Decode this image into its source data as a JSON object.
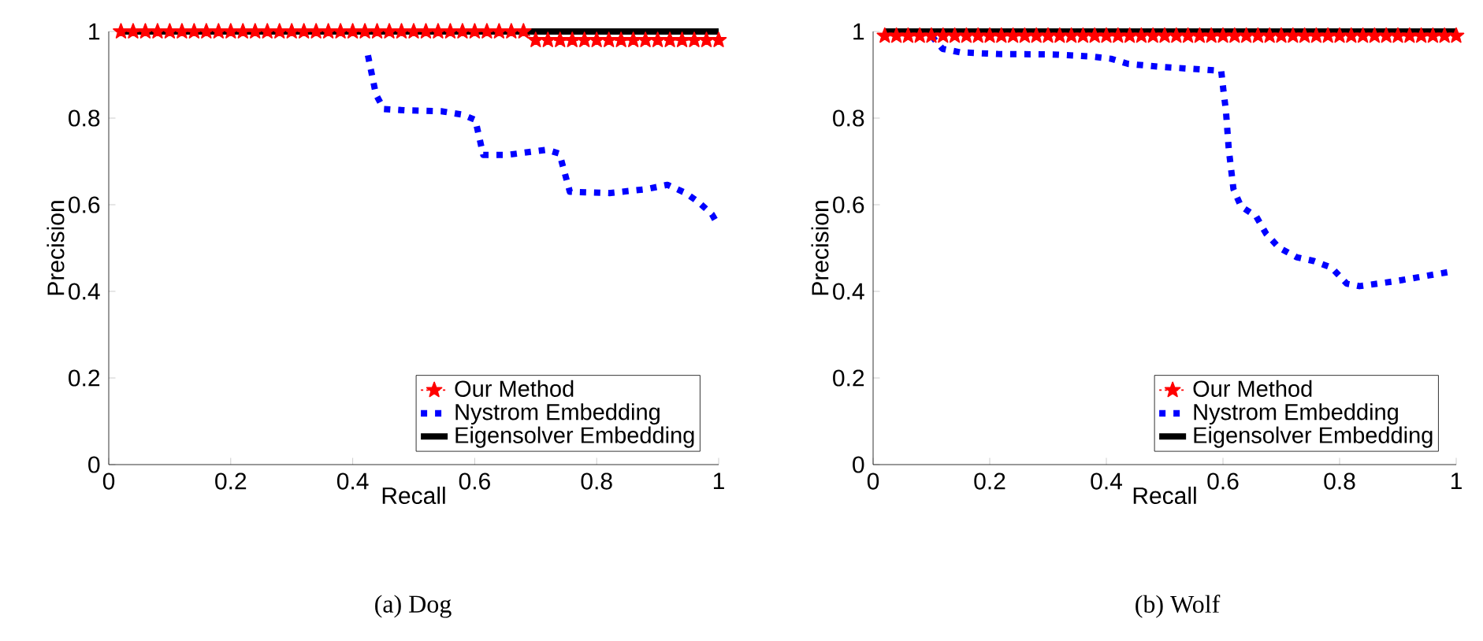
{
  "chart_data": [
    {
      "type": "line",
      "title": "(a) Dog",
      "xlabel": "Recall",
      "ylabel": "Precision",
      "xlim": [
        0,
        1
      ],
      "ylim": [
        0,
        1
      ],
      "xticks": [
        0,
        0.2,
        0.4,
        0.6,
        0.8,
        1
      ],
      "yticks": [
        0,
        0.2,
        0.4,
        0.6,
        0.8,
        1
      ],
      "grid": false,
      "legend": "bottom right",
      "series": [
        {
          "name": "Our Method",
          "color": "#ff0000",
          "marker": "star",
          "line_style": "dotted",
          "x": [
            0.02,
            0.04,
            0.06,
            0.08,
            0.1,
            0.12,
            0.14,
            0.16,
            0.18,
            0.2,
            0.22,
            0.24,
            0.26,
            0.28,
            0.3,
            0.32,
            0.34,
            0.36,
            0.38,
            0.4,
            0.42,
            0.44,
            0.46,
            0.48,
            0.5,
            0.52,
            0.54,
            0.56,
            0.58,
            0.6,
            0.62,
            0.64,
            0.66,
            0.68,
            0.7,
            0.72,
            0.74,
            0.76,
            0.78,
            0.8,
            0.82,
            0.84,
            0.86,
            0.88,
            0.9,
            0.92,
            0.94,
            0.96,
            0.98,
            1
          ],
          "values": [
            1,
            1,
            1,
            1,
            1,
            1,
            1,
            1,
            1,
            1,
            1,
            1,
            1,
            1,
            1,
            1,
            1,
            1,
            1,
            1,
            1,
            1,
            1,
            1,
            1,
            1,
            1,
            1,
            1,
            1,
            1,
            1,
            1,
            1,
            0.98,
            0.98,
            0.98,
            0.98,
            0.98,
            0.98,
            0.98,
            0.98,
            0.98,
            0.98,
            0.98,
            0.98,
            0.98,
            0.98,
            0.98,
            0.98
          ]
        },
        {
          "name": "Nystrom Embedding",
          "color": "#0000ff",
          "marker": "none",
          "line_style": "dotted",
          "x": [
            0.425,
            0.438,
            0.451,
            0.485,
            0.545,
            0.58,
            0.601,
            0.614,
            0.653,
            0.718,
            0.739,
            0.756,
            0.821,
            0.881,
            0.916,
            0.946,
            0.967,
            0.989,
            0.997
          ],
          "values": [
            0.945,
            0.855,
            0.821,
            0.818,
            0.816,
            0.808,
            0.796,
            0.715,
            0.715,
            0.727,
            0.718,
            0.63,
            0.627,
            0.636,
            0.646,
            0.627,
            0.606,
            0.578,
            0.558
          ]
        },
        {
          "name": "Eigensolver Embedding",
          "color": "#000000",
          "marker": "none",
          "line_style": "solid",
          "x": [
            0.02,
            1
          ],
          "values": [
            1,
            1
          ]
        }
      ]
    },
    {
      "type": "line",
      "title": "(b) Wolf",
      "xlabel": "Recall",
      "ylabel": "Precision",
      "xlim": [
        0,
        1
      ],
      "ylim": [
        0,
        1
      ],
      "xticks": [
        0,
        0.2,
        0.4,
        0.6,
        0.8,
        1
      ],
      "yticks": [
        0,
        0.2,
        0.4,
        0.6,
        0.8,
        1
      ],
      "grid": false,
      "legend": "bottom right",
      "series": [
        {
          "name": "Our Method",
          "color": "#ff0000",
          "marker": "star",
          "line_style": "dotted",
          "x": [
            0.02,
            0.04,
            0.06,
            0.08,
            0.1,
            0.12,
            0.14,
            0.16,
            0.18,
            0.2,
            0.22,
            0.24,
            0.26,
            0.28,
            0.3,
            0.32,
            0.34,
            0.36,
            0.38,
            0.4,
            0.42,
            0.44,
            0.46,
            0.48,
            0.5,
            0.52,
            0.54,
            0.56,
            0.58,
            0.6,
            0.62,
            0.64,
            0.66,
            0.68,
            0.7,
            0.72,
            0.74,
            0.76,
            0.78,
            0.8,
            0.82,
            0.84,
            0.86,
            0.88,
            0.9,
            0.92,
            0.94,
            0.96,
            0.98,
            1
          ],
          "values": [
            0.99,
            0.99,
            0.99,
            0.99,
            0.99,
            0.99,
            0.99,
            0.99,
            0.99,
            0.99,
            0.99,
            0.99,
            0.99,
            0.99,
            0.99,
            0.99,
            0.99,
            0.99,
            0.99,
            0.99,
            0.99,
            0.99,
            0.99,
            0.99,
            0.99,
            0.99,
            0.99,
            0.99,
            0.99,
            0.99,
            0.99,
            0.99,
            0.99,
            0.99,
            0.99,
            0.99,
            0.99,
            0.99,
            0.99,
            0.99,
            0.99,
            0.99,
            0.99,
            0.99,
            0.99,
            0.99,
            0.99,
            0.99,
            0.99,
            0.99
          ]
        },
        {
          "name": "Nystrom Embedding",
          "color": "#0000ff",
          "marker": "none",
          "line_style": "dotted",
          "x": [
            0.1,
            0.119,
            0.149,
            0.214,
            0.308,
            0.377,
            0.408,
            0.438,
            0.498,
            0.567,
            0.597,
            0.601,
            0.605,
            0.61,
            0.618,
            0.631,
            0.657,
            0.674,
            0.696,
            0.726,
            0.756,
            0.786,
            0.812,
            0.834,
            0.898,
            0.937,
            0.993
          ],
          "values": [
            0.99,
            0.96,
            0.952,
            0.948,
            0.947,
            0.942,
            0.937,
            0.925,
            0.918,
            0.912,
            0.909,
            0.861,
            0.818,
            0.727,
            0.636,
            0.596,
            0.573,
            0.533,
            0.501,
            0.479,
            0.47,
            0.455,
            0.418,
            0.412,
            0.424,
            0.433,
            0.446
          ]
        },
        {
          "name": "Eigensolver Embedding",
          "color": "#000000",
          "marker": "none",
          "line_style": "solid",
          "x": [
            0.02,
            1
          ],
          "values": [
            1,
            1
          ]
        }
      ]
    }
  ]
}
